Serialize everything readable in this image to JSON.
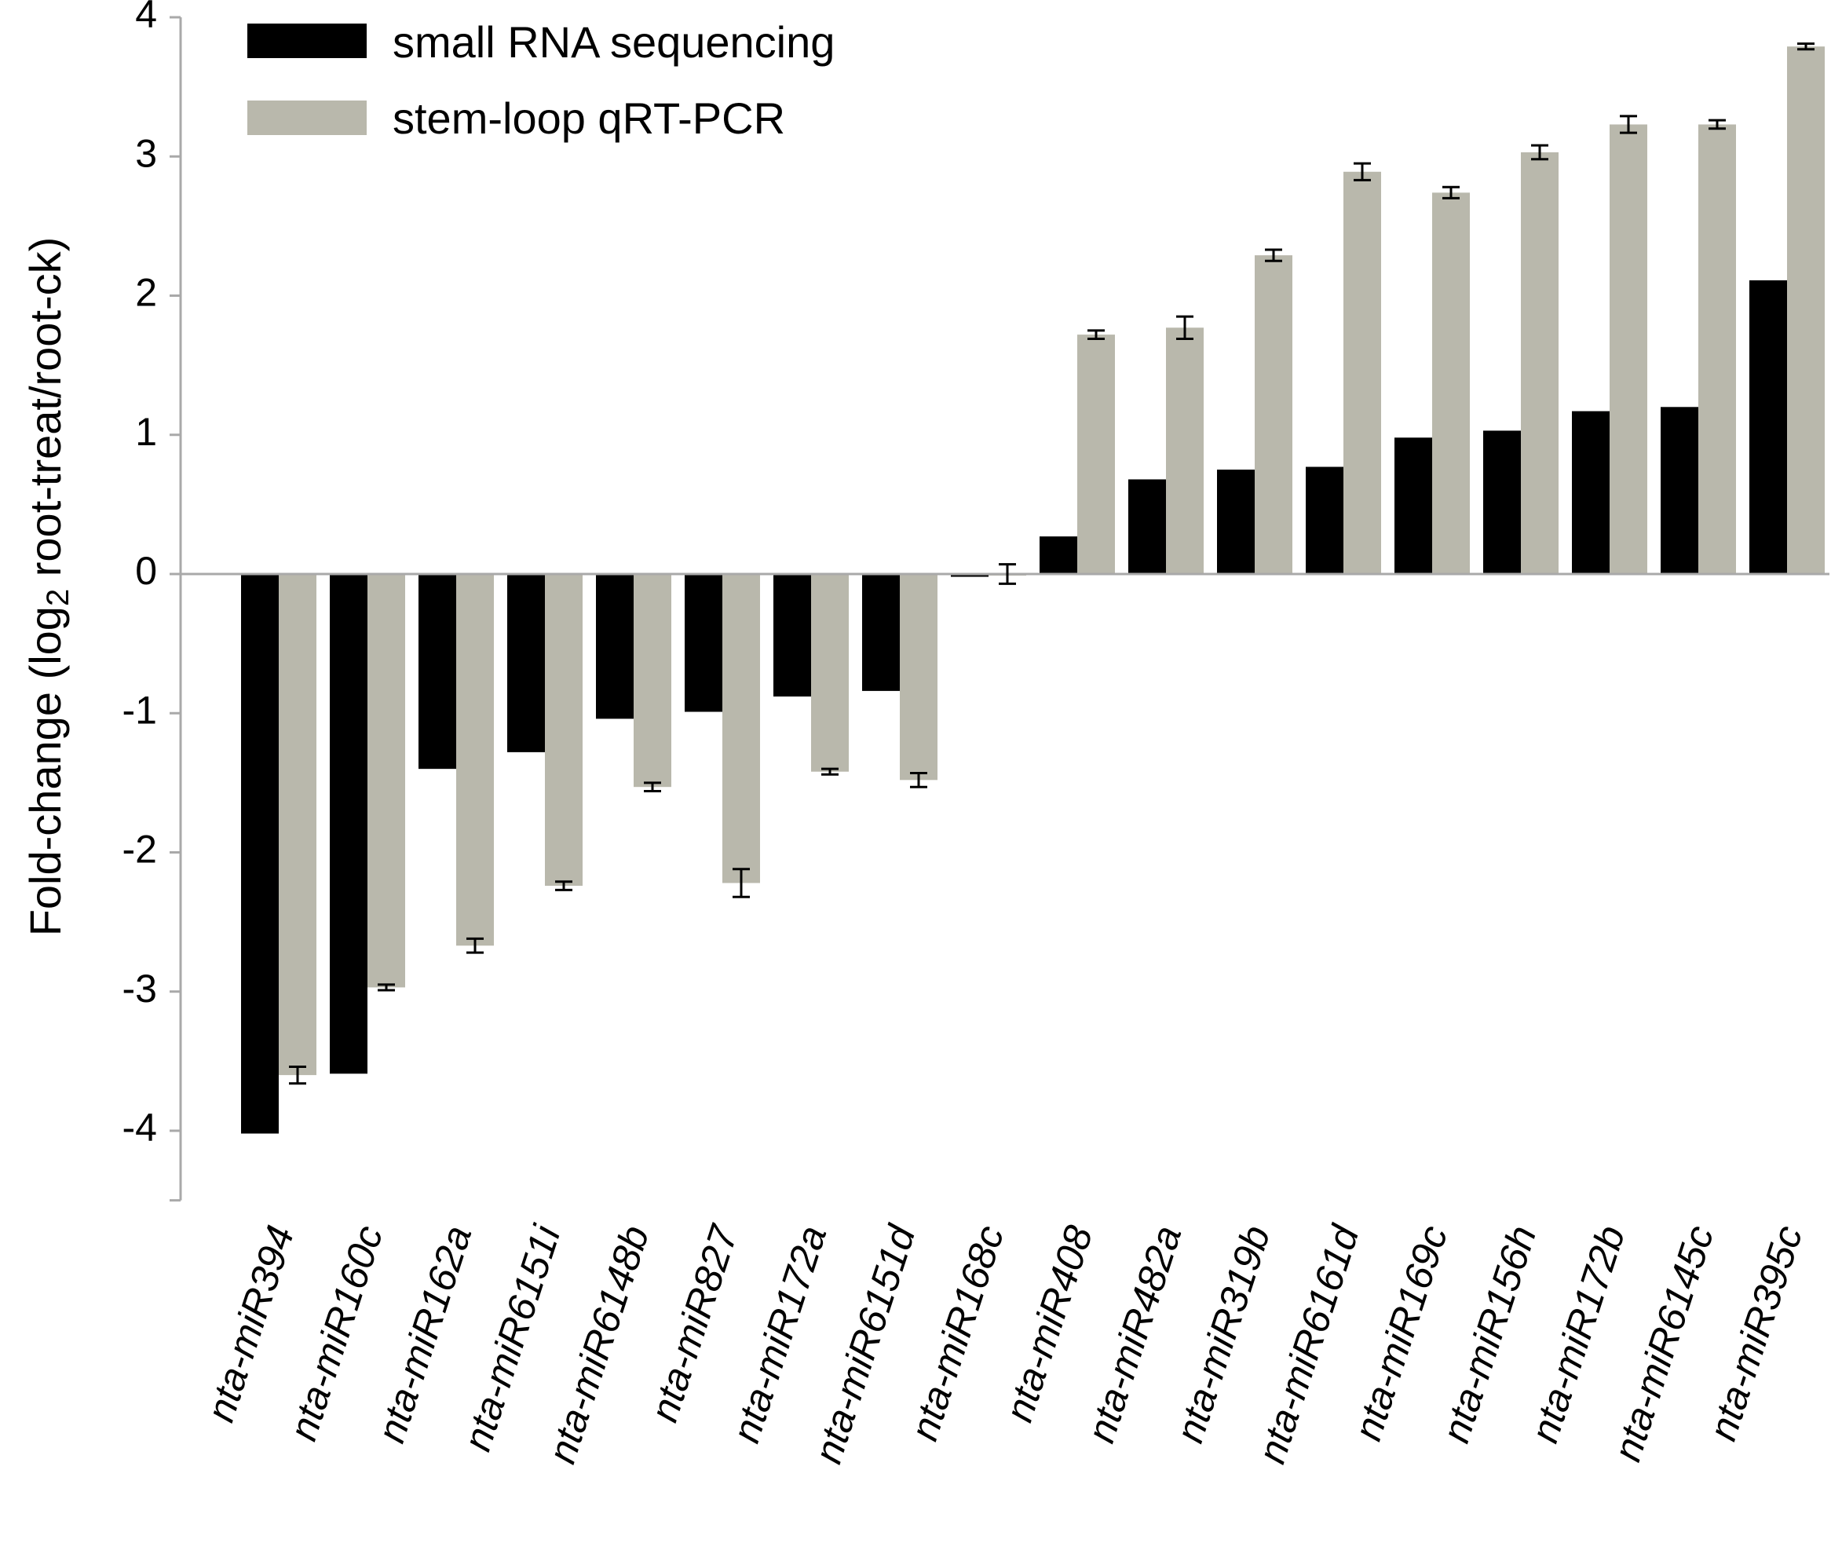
{
  "chart_data": {
    "type": "bar",
    "title": "",
    "xlabel": "",
    "ylabel": "Fold-change (log",
    "ylabel_subscript": "2",
    "ylabel_suffix": " root-treat/root-ck)",
    "ylim": [
      -4.5,
      4
    ],
    "yticks": [
      4,
      3,
      2,
      1,
      0,
      -1,
      -2,
      -3,
      -4
    ],
    "ytick_labels": [
      "4",
      "3",
      "2",
      "1",
      "0",
      "-1",
      "-2",
      "-3",
      "-4"
    ],
    "grid": false,
    "legend_position": "top-left",
    "categories": [
      "nta-miR394",
      "nta-miR160c",
      "nta-miR162a",
      "nta-miR6151i",
      "nta-miR6148b",
      "nta-miR827",
      "nta-miR172a",
      "nta-miR6151d",
      "nta-miR168c",
      "nta-miR408",
      "nta-miR482a",
      "nta-miR319b",
      "nta-miR6161d",
      "nta-miR169c",
      "nta-miR156h",
      "nta-miR172b",
      "nta-miR6145c",
      "nta-miR395c"
    ],
    "series": [
      {
        "name": "small RNA sequencing",
        "color": "#000000",
        "values": [
          -4.02,
          -3.59,
          -1.4,
          -1.28,
          -1.04,
          -0.99,
          -0.88,
          -0.84,
          -0.02,
          0.27,
          0.68,
          0.75,
          0.77,
          0.98,
          1.03,
          1.17,
          1.2,
          2.11
        ]
      },
      {
        "name": "stem-loop qRT-PCR",
        "color": "#b9b8ac",
        "values": [
          -3.6,
          -2.97,
          -2.67,
          -2.24,
          -1.53,
          -2.22,
          -1.42,
          -1.48,
          0.0,
          1.72,
          1.77,
          2.29,
          2.89,
          2.74,
          3.03,
          3.23,
          3.23,
          3.79
        ],
        "errors": [
          0.06,
          0.02,
          0.05,
          0.03,
          0.03,
          0.1,
          0.02,
          0.05,
          0.07,
          0.03,
          0.08,
          0.04,
          0.06,
          0.04,
          0.05,
          0.06,
          0.03,
          0.02
        ]
      }
    ]
  }
}
